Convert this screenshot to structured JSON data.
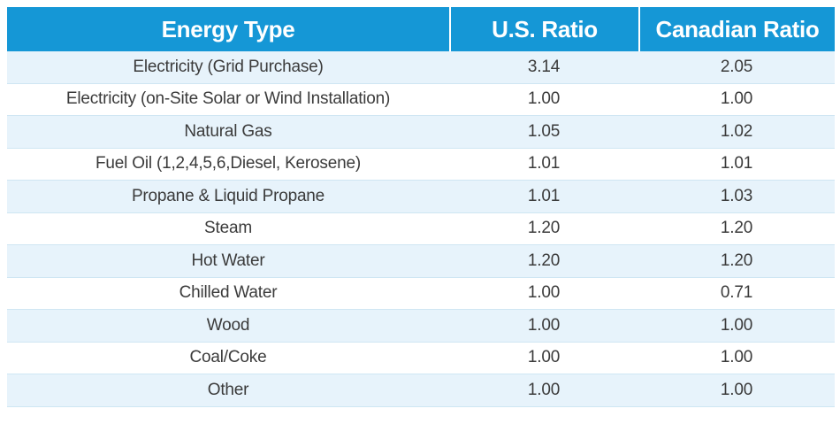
{
  "table": {
    "headers": [
      "Energy Type",
      "U.S. Ratio",
      "Canadian Ratio"
    ],
    "rows": [
      [
        "Electricity (Grid Purchase)",
        "3.14",
        "2.05"
      ],
      [
        "Electricity (on-Site Solar or Wind Installation)",
        "1.00",
        "1.00"
      ],
      [
        "Natural Gas",
        "1.05",
        "1.02"
      ],
      [
        "Fuel Oil (1,2,4,5,6,Diesel, Kerosene)",
        "1.01",
        "1.01"
      ],
      [
        "Propane & Liquid Propane",
        "1.01",
        "1.03"
      ],
      [
        "Steam",
        "1.20",
        "1.20"
      ],
      [
        "Hot Water",
        "1.20",
        "1.20"
      ],
      [
        "Chilled Water",
        "1.00",
        "0.71"
      ],
      [
        "Wood",
        "1.00",
        "1.00"
      ],
      [
        "Coal/Coke",
        "1.00",
        "1.00"
      ],
      [
        "Other",
        "1.00",
        "1.00"
      ]
    ]
  },
  "colors": {
    "header_bg": "#1597d6",
    "header_text": "#ffffff",
    "stripe_bg": "#e7f3fb",
    "body_text": "#3b3b3b"
  }
}
